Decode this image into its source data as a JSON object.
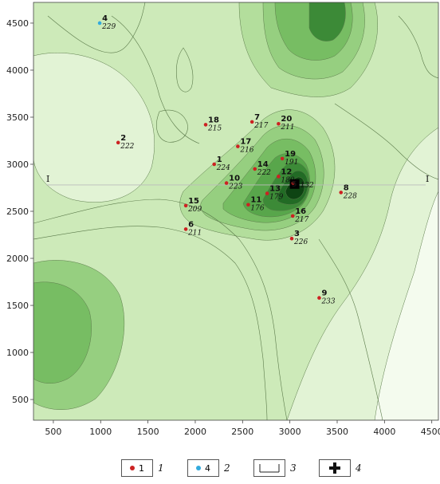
{
  "map": {
    "x_ticks": [
      "500",
      "1000",
      "1500",
      "2000",
      "2500",
      "3000",
      "3500",
      "4000",
      "4500"
    ],
    "y_ticks": [
      "4500",
      "4000",
      "3500",
      "3000",
      "2500",
      "2000",
      "1500",
      "1000",
      "500"
    ],
    "x_tick_values": [
      500,
      1000,
      1500,
      2000,
      2500,
      3000,
      3500,
      4000,
      4500
    ],
    "y_tick_values": [
      4500,
      4000,
      3500,
      3000,
      2500,
      2000,
      1500,
      1000,
      500
    ],
    "x_range": [
      290,
      4570
    ],
    "y_range": [
      280,
      4720
    ],
    "section_label_left": "I",
    "section_label_right": "I",
    "section_line_y": 2780,
    "colors": {
      "red_well": "#cc2222",
      "blue_well": "#33aadd",
      "shade_levels": [
        "#f4fbee",
        "#e2f3d5",
        "#cdeab9",
        "#b3de9c",
        "#96cf80",
        "#77bd63",
        "#58a64b",
        "#3c8a37",
        "#226b25",
        "#0e4413"
      ]
    },
    "wells": [
      {
        "id": "1",
        "value": "224",
        "x": 2200,
        "y": 3000,
        "type": "red"
      },
      {
        "id": "2",
        "value": "222",
        "x": 1185,
        "y": 3230,
        "type": "red"
      },
      {
        "id": "3",
        "value": "226",
        "x": 3020,
        "y": 2210,
        "type": "red"
      },
      {
        "id": "4",
        "value": "229",
        "x": 990,
        "y": 4500,
        "type": "blue"
      },
      {
        "id": "6",
        "value": "211",
        "x": 1900,
        "y": 2310,
        "type": "red"
      },
      {
        "id": "7",
        "value": "217",
        "x": 2600,
        "y": 3450,
        "type": "red"
      },
      {
        "id": "8",
        "value": "228",
        "x": 3540,
        "y": 2700,
        "type": "red"
      },
      {
        "id": "9",
        "value": "233",
        "x": 3310,
        "y": 1580,
        "type": "red"
      },
      {
        "id": "10",
        "value": "223",
        "x": 2330,
        "y": 2800,
        "type": "red"
      },
      {
        "id": "11",
        "value": "176",
        "x": 2560,
        "y": 2570,
        "type": "red"
      },
      {
        "id": "12",
        "value": "180",
        "x": 2880,
        "y": 2870,
        "type": "red"
      },
      {
        "id": "13",
        "value": "179",
        "x": 2760,
        "y": 2690,
        "type": "red"
      },
      {
        "id": "14",
        "value": "222",
        "x": 2630,
        "y": 2950,
        "type": "red"
      },
      {
        "id": "15",
        "value": "209",
        "x": 1900,
        "y": 2560,
        "type": "red"
      },
      {
        "id": "16",
        "value": "217",
        "x": 3030,
        "y": 2450,
        "type": "red"
      },
      {
        "id": "17",
        "value": "216",
        "x": 2450,
        "y": 3190,
        "type": "red"
      },
      {
        "id": "18",
        "value": "215",
        "x": 2110,
        "y": 3420,
        "type": "red"
      },
      {
        "id": "19",
        "value": "191",
        "x": 2920,
        "y": 3060,
        "type": "red"
      },
      {
        "id": "20",
        "value": "211",
        "x": 2880,
        "y": 3430,
        "type": "red"
      }
    ],
    "center_well": {
      "id": "5",
      "value": "132",
      "x": 3050,
      "y": 2790
    }
  },
  "legend": [
    {
      "symbol": "red-dot",
      "text": "1",
      "num": "1"
    },
    {
      "symbol": "blue-dot",
      "text": "4",
      "num": "2"
    },
    {
      "symbol": "section-line",
      "text": "",
      "num": "3"
    },
    {
      "symbol": "cross",
      "text": "",
      "num": "4"
    }
  ]
}
